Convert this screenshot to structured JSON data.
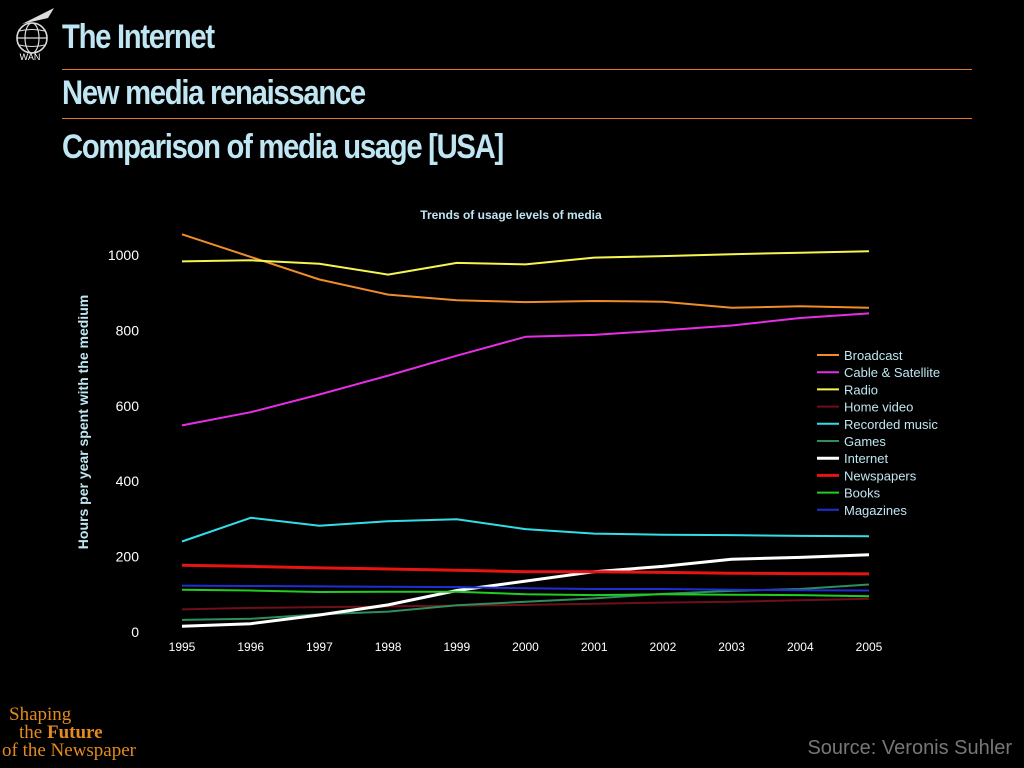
{
  "logo": {
    "label": "WAN",
    "icon": "globe-icon"
  },
  "header": {
    "title": "The Internet",
    "subtitle": "New media renaissance",
    "heading": "Comparison of media usage [USA]",
    "title_color": "#bfe6f2",
    "rule_color": "#e0782b"
  },
  "chart_data": {
    "type": "line",
    "title": "Trends of usage levels of media",
    "xlabel": "",
    "ylabel": "Hours per year spent with the medium",
    "x": [
      "1995",
      "1996",
      "1997",
      "1998",
      "1999",
      "2000",
      "2001",
      "2002",
      "2003",
      "2004",
      "2005"
    ],
    "ylim": [
      0,
      1100
    ],
    "yticks": [
      "0",
      "200",
      "400",
      "600",
      "800",
      "1000"
    ],
    "grid": false,
    "legend_position": "right",
    "series": [
      {
        "name": "Broadcast",
        "color": "#f08c2a",
        "values": [
          1055,
          995,
          935,
          895,
          880,
          875,
          878,
          876,
          860,
          864,
          860
        ]
      },
      {
        "name": "Cable & Satellite",
        "color": "#e62ee6",
        "values": [
          548,
          583,
          630,
          680,
          733,
          783,
          788,
          800,
          813,
          833,
          845
        ]
      },
      {
        "name": "Radio",
        "color": "#f5f552",
        "values": [
          983,
          986,
          977,
          948,
          979,
          975,
          993,
          997,
          1002,
          1006,
          1010
        ]
      },
      {
        "name": "Home video",
        "color": "#6e0f1a",
        "values": [
          60,
          64,
          66,
          68,
          70,
          72,
          75,
          78,
          80,
          84,
          88
        ]
      },
      {
        "name": "Recorded music",
        "color": "#33dde8",
        "values": [
          240,
          303,
          282,
          294,
          299,
          273,
          261,
          258,
          257,
          255,
          254
        ]
      },
      {
        "name": "Games",
        "color": "#2e8f5c",
        "values": [
          32,
          35,
          47,
          54,
          71,
          80,
          89,
          101,
          109,
          114,
          126
        ]
      },
      {
        "name": "Internet",
        "color": "#ffffff",
        "values": [
          15,
          22,
          45,
          72,
          110,
          135,
          160,
          174,
          193,
          198,
          205
        ]
      },
      {
        "name": "Newspapers",
        "color": "#e81414",
        "values": [
          177,
          174,
          170,
          167,
          164,
          160,
          160,
          158,
          156,
          155,
          154
        ]
      },
      {
        "name": "Books",
        "color": "#22cc22",
        "values": [
          112,
          110,
          106,
          107,
          107,
          100,
          98,
          100,
          99,
          98,
          95
        ]
      },
      {
        "name": "Magazines",
        "color": "#1f2fd6",
        "values": [
          123,
          122,
          121,
          120,
          119,
          116,
          114,
          114,
          112,
          111,
          110
        ]
      }
    ]
  },
  "footer": {
    "tagline_line1": "Shaping",
    "tagline_the": "the",
    "tagline_future": "Future",
    "tagline_line3": "of the Newspaper",
    "tagline_color": "#e58a1f",
    "source": "Source: Veronis Suhler"
  }
}
